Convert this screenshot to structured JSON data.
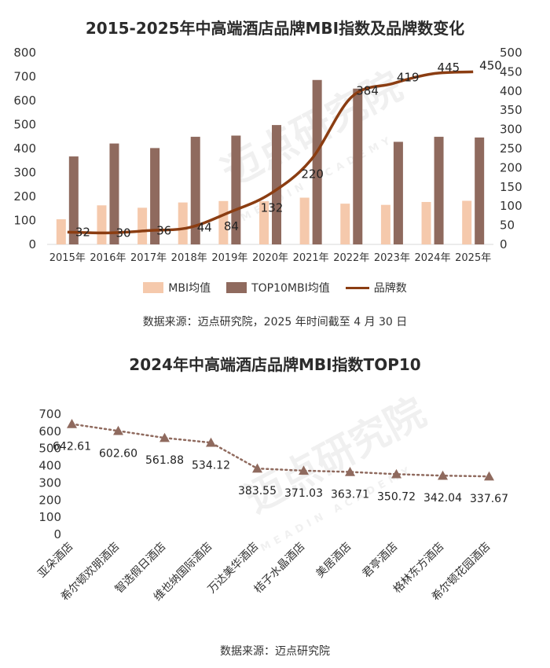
{
  "chart_data": [
    {
      "type": "bar",
      "title": "2015-2025年中高端酒店品牌MBI指数及品牌数变化",
      "categories": [
        "2015年",
        "2016年",
        "2017年",
        "2018年",
        "2019年",
        "2020年",
        "2021年",
        "2022年",
        "2023年",
        "2024年",
        "2025年"
      ],
      "series": [
        {
          "name": "MBI均值",
          "type": "bar",
          "axis": "left",
          "color": "#f5c9ac",
          "values": [
            105,
            163,
            153,
            175,
            181,
            180,
            195,
            170,
            165,
            177,
            182
          ]
        },
        {
          "name": "TOP10MBI均值",
          "type": "bar",
          "axis": "left",
          "color": "#8f6a5e",
          "values": [
            367,
            421,
            402,
            449,
            454,
            498,
            686,
            650,
            428,
            449,
            446
          ]
        },
        {
          "name": "品牌数",
          "type": "line",
          "axis": "right",
          "color": "#8b3d12",
          "values": [
            32,
            30,
            36,
            44,
            84,
            132,
            220,
            384,
            419,
            445,
            450
          ]
        }
      ],
      "ylim": [
        0,
        800
      ],
      "y2lim": [
        0,
        500
      ],
      "yticks": [
        "0",
        "100",
        "200",
        "300",
        "400",
        "500",
        "600",
        "700",
        "800"
      ],
      "y2ticks": [
        "0",
        "50",
        "100",
        "150",
        "200",
        "250",
        "300",
        "350",
        "400",
        "450",
        "500"
      ],
      "legend_position": "bottom",
      "source": "数据来源：迈点研究院，2025 年时间截至 4 月 30 日"
    },
    {
      "type": "line",
      "title": "2024年中高端酒店品牌MBI指数TOP10",
      "categories": [
        "亚朵酒店",
        "希尔顿欢朋酒店",
        "智选假日酒店",
        "维也纳国际酒店",
        "万达美华酒店",
        "桔子水晶酒店",
        "美居酒店",
        "君亭酒店",
        "格林东方酒店",
        "希尔顿花园酒店"
      ],
      "values": [
        642.61,
        602.6,
        561.88,
        534.12,
        383.55,
        371.03,
        363.71,
        350.72,
        342.04,
        337.67
      ],
      "labels": [
        "642.61",
        "602.60",
        "561.88",
        "534.12",
        "383.55",
        "371.03",
        "363.71",
        "350.72",
        "342.04",
        "337.67"
      ],
      "ylim": [
        0,
        700
      ],
      "yticks": [
        "0",
        "100",
        "200",
        "300",
        "400",
        "500",
        "600",
        "700"
      ],
      "color": "#8f6a5e",
      "marker": "triangle",
      "line_style": "dotted",
      "source": "数据来源：迈点研究院"
    }
  ],
  "watermark": {
    "text": "迈点研究院",
    "subtext": "MEADIN ACADEMY"
  }
}
